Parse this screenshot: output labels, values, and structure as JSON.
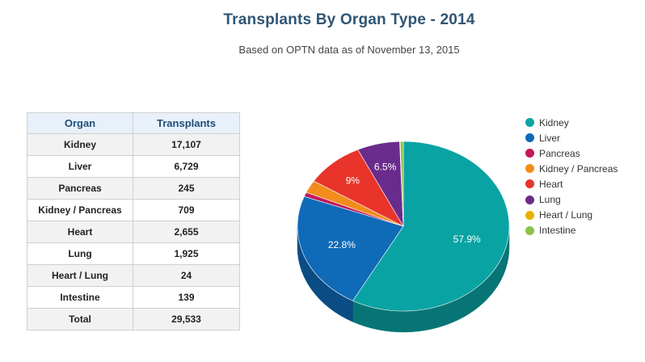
{
  "title": "Transplants By Organ Type - 2014",
  "subtitle": "Based on OPTN data as of November 13, 2015",
  "table": {
    "headers": [
      "Organ",
      "Transplants"
    ],
    "rows": [
      [
        "Kidney",
        "17,107"
      ],
      [
        "Liver",
        "6,729"
      ],
      [
        "Pancreas",
        "245"
      ],
      [
        "Kidney / Pancreas",
        "709"
      ],
      [
        "Heart",
        "2,655"
      ],
      [
        "Lung",
        "1,925"
      ],
      [
        "Heart / Lung",
        "24"
      ],
      [
        "Intestine",
        "139"
      ],
      [
        "Total",
        "29,533"
      ]
    ]
  },
  "chart_data": {
    "type": "pie",
    "title": "Transplants By Organ Type - 2014",
    "subtitle": "Based on OPTN data as of November 13, 2015",
    "style": "3d",
    "legend_position": "right",
    "categories": [
      "Kidney",
      "Liver",
      "Pancreas",
      "Kidney / Pancreas",
      "Heart",
      "Lung",
      "Heart / Lung",
      "Intestine"
    ],
    "values": [
      17107,
      6729,
      245,
      709,
      2655,
      1925,
      24,
      139
    ],
    "data_labels": [
      "57.9%",
      "22.8%",
      "",
      "",
      "9%",
      "6.5%",
      "",
      ""
    ],
    "colors": [
      "#0aa3a3",
      "#0f6ab8",
      "#c2185b",
      "#f28c1c",
      "#e8342a",
      "#6a2c8c",
      "#e8b100",
      "#8bc34a"
    ]
  }
}
